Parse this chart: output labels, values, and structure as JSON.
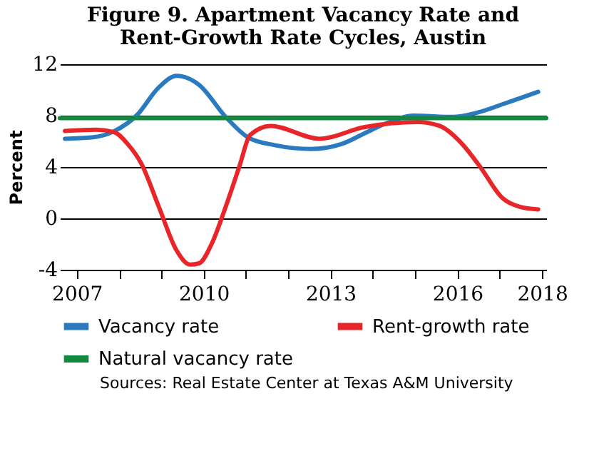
{
  "chart_data": {
    "type": "line",
    "title": "Figure 9. Apartment Vacancy Rate and\nRent-Growth Rate Cycles, Austin",
    "ylabel": "Percent",
    "xlim": [
      2006.6,
      2018.1
    ],
    "xticks": [
      2007,
      {
        "value": 2008,
        "label": null
      },
      {
        "value": 2009,
        "label": null
      },
      2010,
      {
        "value": 2011,
        "label": null
      },
      {
        "value": 2012,
        "label": null
      },
      2013,
      {
        "value": 2014,
        "label": null
      },
      {
        "value": 2015,
        "label": null
      },
      2016,
      {
        "value": 2017,
        "label": null
      },
      2018
    ],
    "ylim": [
      -4,
      12
    ],
    "yticks": [
      -4,
      0,
      4,
      8,
      12
    ],
    "grid": "y",
    "legend": "bottom",
    "line_style": "solid",
    "marker": "none",
    "series": [
      {
        "name": "Vacancy rate",
        "color": "#2a7ac0",
        "x": [
          2006.72,
          2007.36,
          2007.89,
          2008.41,
          2008.94,
          2009.36,
          2009.89,
          2010.52,
          2011.05,
          2011.68,
          2012.53,
          2013.27,
          2013.79,
          2014.32,
          2014.95,
          2015.9,
          2016.43,
          2017.17,
          2017.91
        ],
        "values": [
          6.2,
          6.3,
          6.8,
          8.0,
          10.2,
          11.1,
          10.4,
          7.9,
          6.3,
          5.7,
          5.4,
          5.8,
          6.6,
          7.4,
          8.0,
          7.9,
          8.2,
          9.0,
          9.85
        ]
      },
      {
        "name": "Rent-growth rate",
        "color": "#e8262a",
        "x": [
          2006.72,
          2007.46,
          2007.89,
          2008.2,
          2008.52,
          2008.94,
          2009.36,
          2009.68,
          2009.89,
          2010.2,
          2010.52,
          2010.84,
          2011.1,
          2011.58,
          2012.74,
          2013.79,
          2015.06,
          2015.58,
          2016.11,
          2016.54,
          2017.06,
          2017.48,
          2017.91
        ],
        "values": [
          6.8,
          6.9,
          6.7,
          5.8,
          4.3,
          0.9,
          -2.5,
          -3.6,
          -3.5,
          -1.9,
          0.9,
          4.0,
          6.5,
          7.2,
          6.2,
          7.1,
          7.5,
          7.2,
          5.8,
          4.0,
          1.6,
          0.9,
          0.7
        ]
      },
      {
        "name": "Natural vacancy rate",
        "color": "#118a40",
        "x": [
          2006.6,
          2018.1
        ],
        "values": [
          7.8,
          7.8
        ]
      }
    ],
    "annotations": [
      "Sources: Real Estate Center at Texas A&M University"
    ]
  }
}
